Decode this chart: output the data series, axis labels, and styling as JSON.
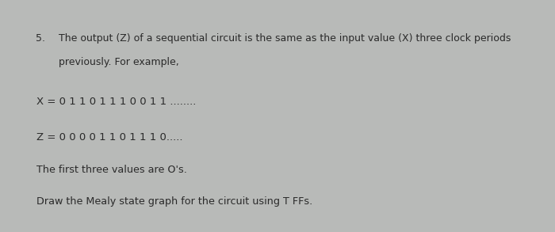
{
  "background_color": "#b8bab8",
  "title_number": "5.",
  "title_text_line1": "The output (Z) of a sequential circuit is the same as the input value (X) three clock periods",
  "title_text_line2": "previously. For example,",
  "x_label": "X = 0 1 1 0 1 1 1 0 0 1 1 ........",
  "z_label": "Z = 0 0 0 0 1 1 0 1 1 1 0.....",
  "note": "The first three values are O's.",
  "question": "Draw the Mealy state graph for the circuit using T FFs.",
  "font_color": "#2a2a2a",
  "title_fontsize": 9.0,
  "body_fontsize": 9.2,
  "mono_fontsize": 9.5,
  "fig_width": 7.0,
  "fig_height": 2.93,
  "dpi": 100
}
